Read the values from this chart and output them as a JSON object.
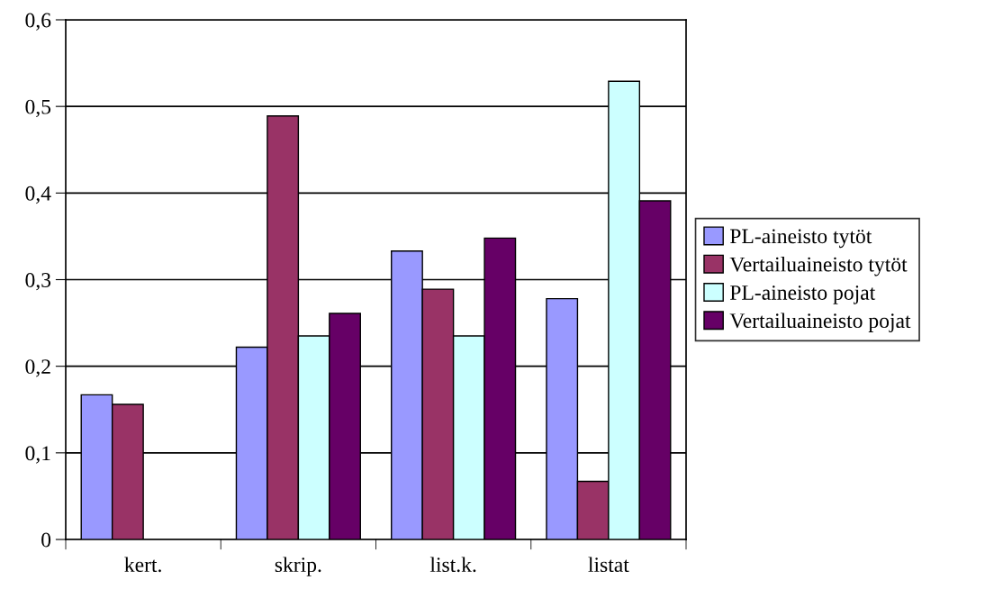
{
  "chart_data": {
    "type": "bar",
    "categories": [
      "kert.",
      "skrip.",
      "list.k.",
      "listat"
    ],
    "series": [
      {
        "name": "PL-aineisto tytöt",
        "color": "#9999ff",
        "values": [
          0.167,
          0.222,
          0.333,
          0.278
        ]
      },
      {
        "name": "Vertailuaineisto tytöt",
        "color": "#993366",
        "values": [
          0.156,
          0.489,
          0.289,
          0.067
        ]
      },
      {
        "name": "PL-aineisto pojat",
        "color": "#ccffff",
        "values": [
          null,
          0.235,
          0.235,
          0.529
        ]
      },
      {
        "name": "Vertailuaineisto pojat",
        "color": "#660066",
        "values": [
          null,
          0.261,
          0.348,
          0.391
        ]
      }
    ],
    "ylim": [
      0,
      0.6
    ],
    "yticks": [
      {
        "value": 0,
        "label": "0"
      },
      {
        "value": 0.1,
        "label": "0,1"
      },
      {
        "value": 0.2,
        "label": "0,2"
      },
      {
        "value": 0.3,
        "label": "0,3"
      },
      {
        "value": 0.4,
        "label": "0,4"
      },
      {
        "value": 0.5,
        "label": "0,5"
      },
      {
        "value": 0.6,
        "label": "0,6"
      }
    ],
    "grid": "y",
    "legend": "right"
  }
}
